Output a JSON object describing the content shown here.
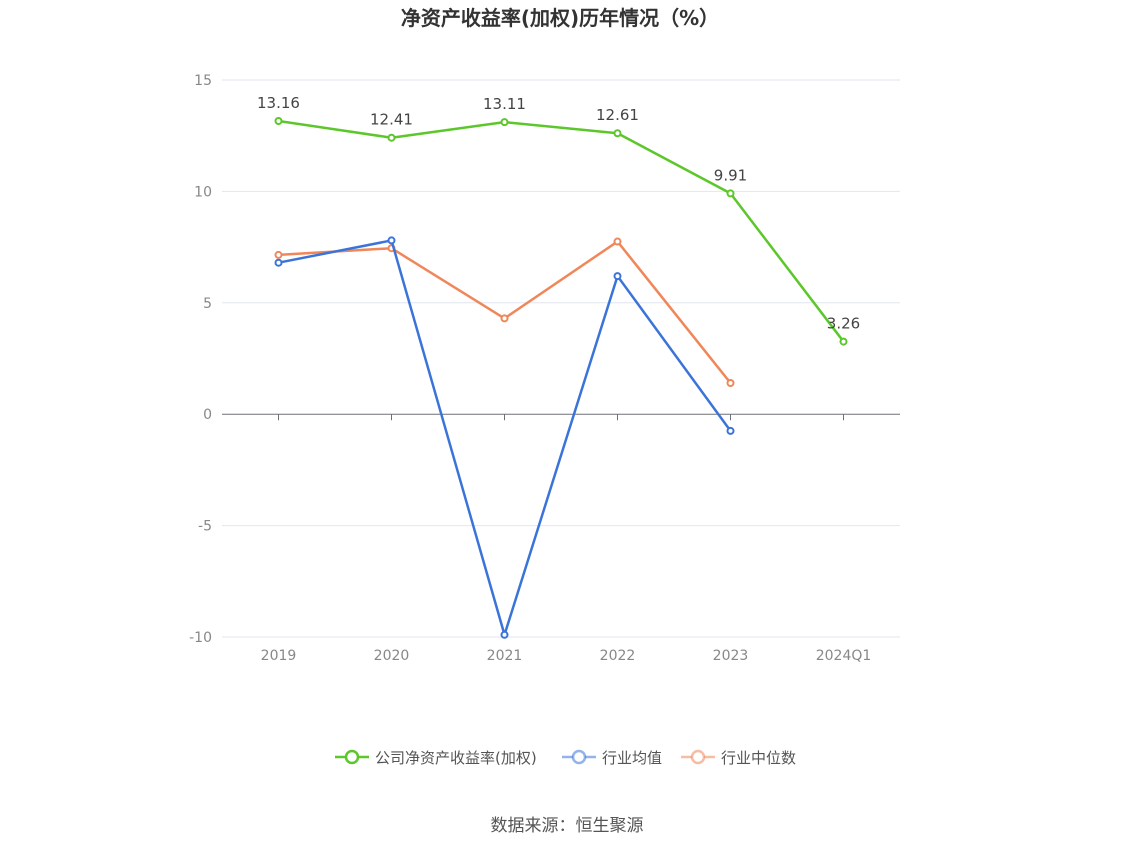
{
  "chart_data": {
    "type": "line",
    "title": "净资产收益率(加权)历年情况（%）",
    "categories": [
      "2019",
      "2020",
      "2021",
      "2022",
      "2023",
      "2024Q1"
    ],
    "ylim": [
      -10,
      15
    ],
    "yticks": [
      15,
      10,
      5,
      0,
      -5,
      -10
    ],
    "grid": true,
    "legend_position": "bottom",
    "series": [
      {
        "name": "公司净资产收益率(加权)",
        "color": "#5cc72a",
        "values": [
          13.16,
          12.41,
          13.11,
          12.61,
          9.91,
          3.26
        ],
        "labels": [
          "13.16",
          "12.41",
          "13.11",
          "12.61",
          "9.91",
          "3.26"
        ]
      },
      {
        "name": "行业均值",
        "color": "#3b74d9",
        "values": [
          6.8,
          7.8,
          -9.9,
          6.2,
          -0.75,
          null
        ]
      },
      {
        "name": "行业中位数",
        "color": "#f0875a",
        "values": [
          7.15,
          7.45,
          4.3,
          7.75,
          1.4,
          null
        ]
      }
    ],
    "source": "数据来源：恒生聚源"
  }
}
